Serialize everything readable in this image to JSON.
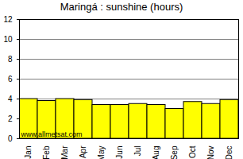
{
  "chart_data": {
    "type": "bar",
    "title": "Maringá : sunshine (hours)",
    "categories": [
      "Jan",
      "Feb",
      "Mar",
      "Apr",
      "May",
      "Jun",
      "Jul",
      "Aug",
      "Sep",
      "Oct",
      "Nov",
      "Dec"
    ],
    "values": [
      4.0,
      3.8,
      4.0,
      3.9,
      3.4,
      3.4,
      3.5,
      3.4,
      3.0,
      3.7,
      3.5,
      3.9
    ],
    "color": "#ffff00",
    "ylim": [
      0,
      12
    ],
    "yticks": [
      0,
      2,
      4,
      6,
      8,
      10,
      12
    ],
    "grid": true,
    "annotations": [
      "www.allmetsat.com"
    ]
  }
}
